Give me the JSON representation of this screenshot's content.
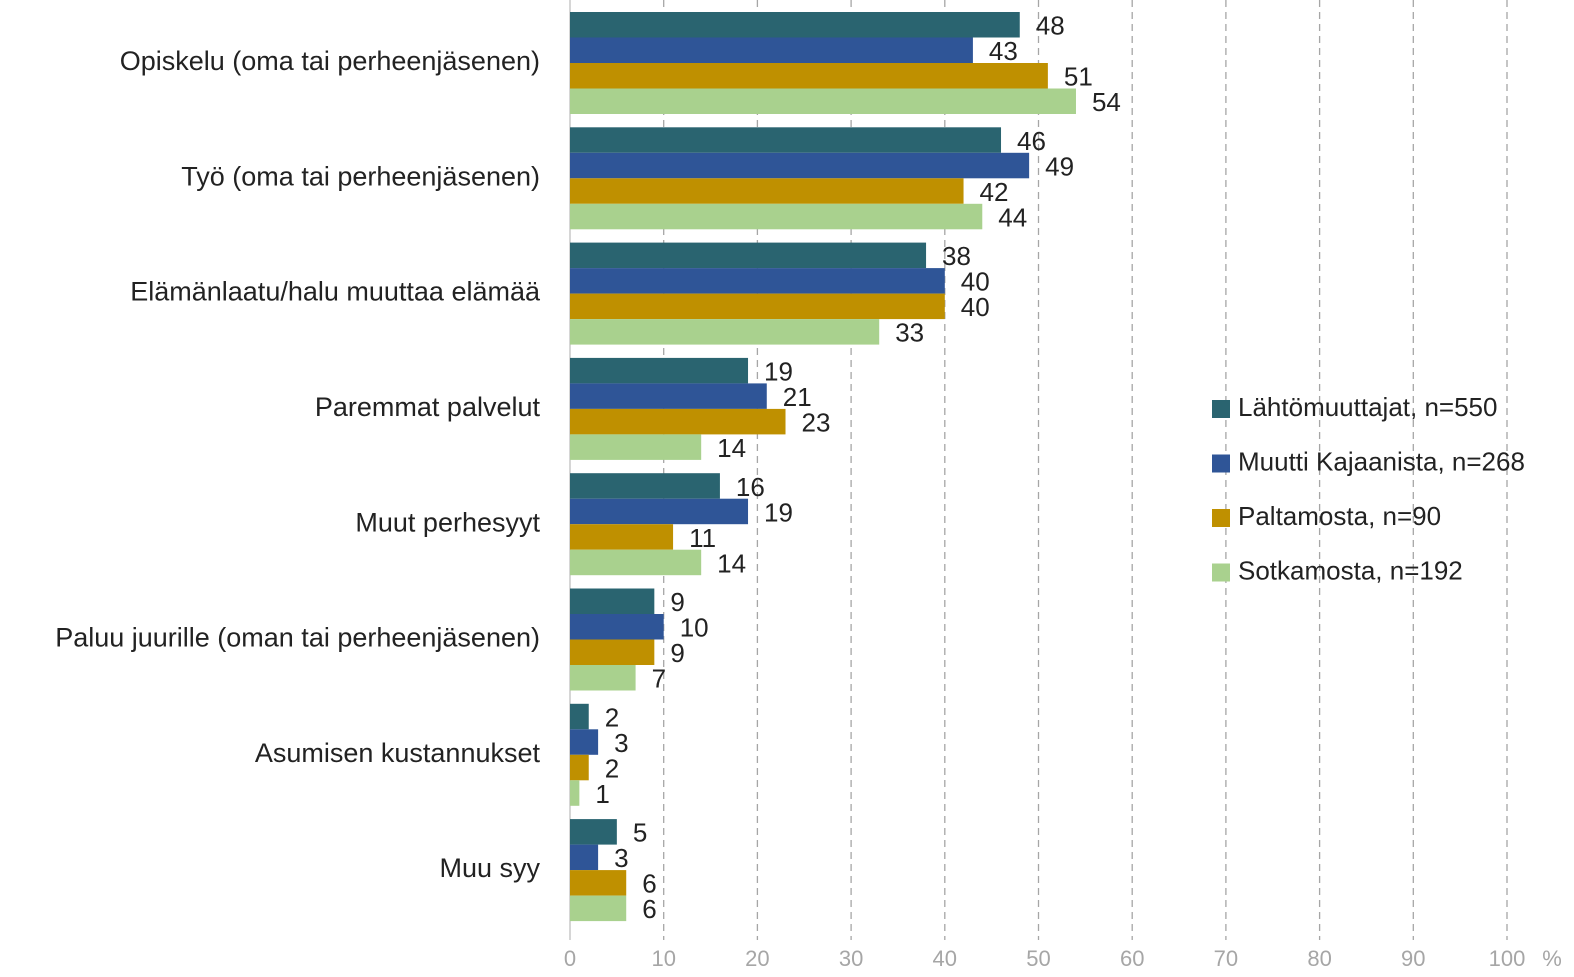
{
  "chart_data": {
    "type": "bar",
    "orientation": "horizontal",
    "categories": [
      "Opiskelu (oma tai perheenjäsenen)",
      "Työ (oma tai perheenjäsenen)",
      "Elämänlaatu/halu muuttaa elämää",
      "Paremmat palvelut",
      "Muut perhesyyt",
      "Paluu juurille (oman tai perheenjäsenen)",
      "Asumisen kustannukset",
      "Muu syy"
    ],
    "series": [
      {
        "name": "Lähtömuuttajat, n=550",
        "color": "#2a6470",
        "values": [
          48,
          46,
          38,
          19,
          16,
          9,
          2,
          5
        ]
      },
      {
        "name": "Muutti Kajaanista, n=268",
        "color": "#2f5597",
        "values": [
          43,
          49,
          40,
          21,
          19,
          10,
          3,
          3
        ]
      },
      {
        "name": "Paltamosta, n=90",
        "color": "#bf9000",
        "values": [
          51,
          42,
          40,
          23,
          11,
          9,
          2,
          6
        ]
      },
      {
        "name": "Sotkamosta, n=192",
        "color": "#a9d18e",
        "values": [
          54,
          44,
          33,
          14,
          14,
          7,
          1,
          6
        ]
      }
    ],
    "xlabel": "%",
    "xlim": [
      0,
      100
    ],
    "xticks": [
      0,
      10,
      20,
      30,
      40,
      50,
      60,
      70,
      80,
      90,
      100
    ],
    "grid": true,
    "legend": "right"
  }
}
